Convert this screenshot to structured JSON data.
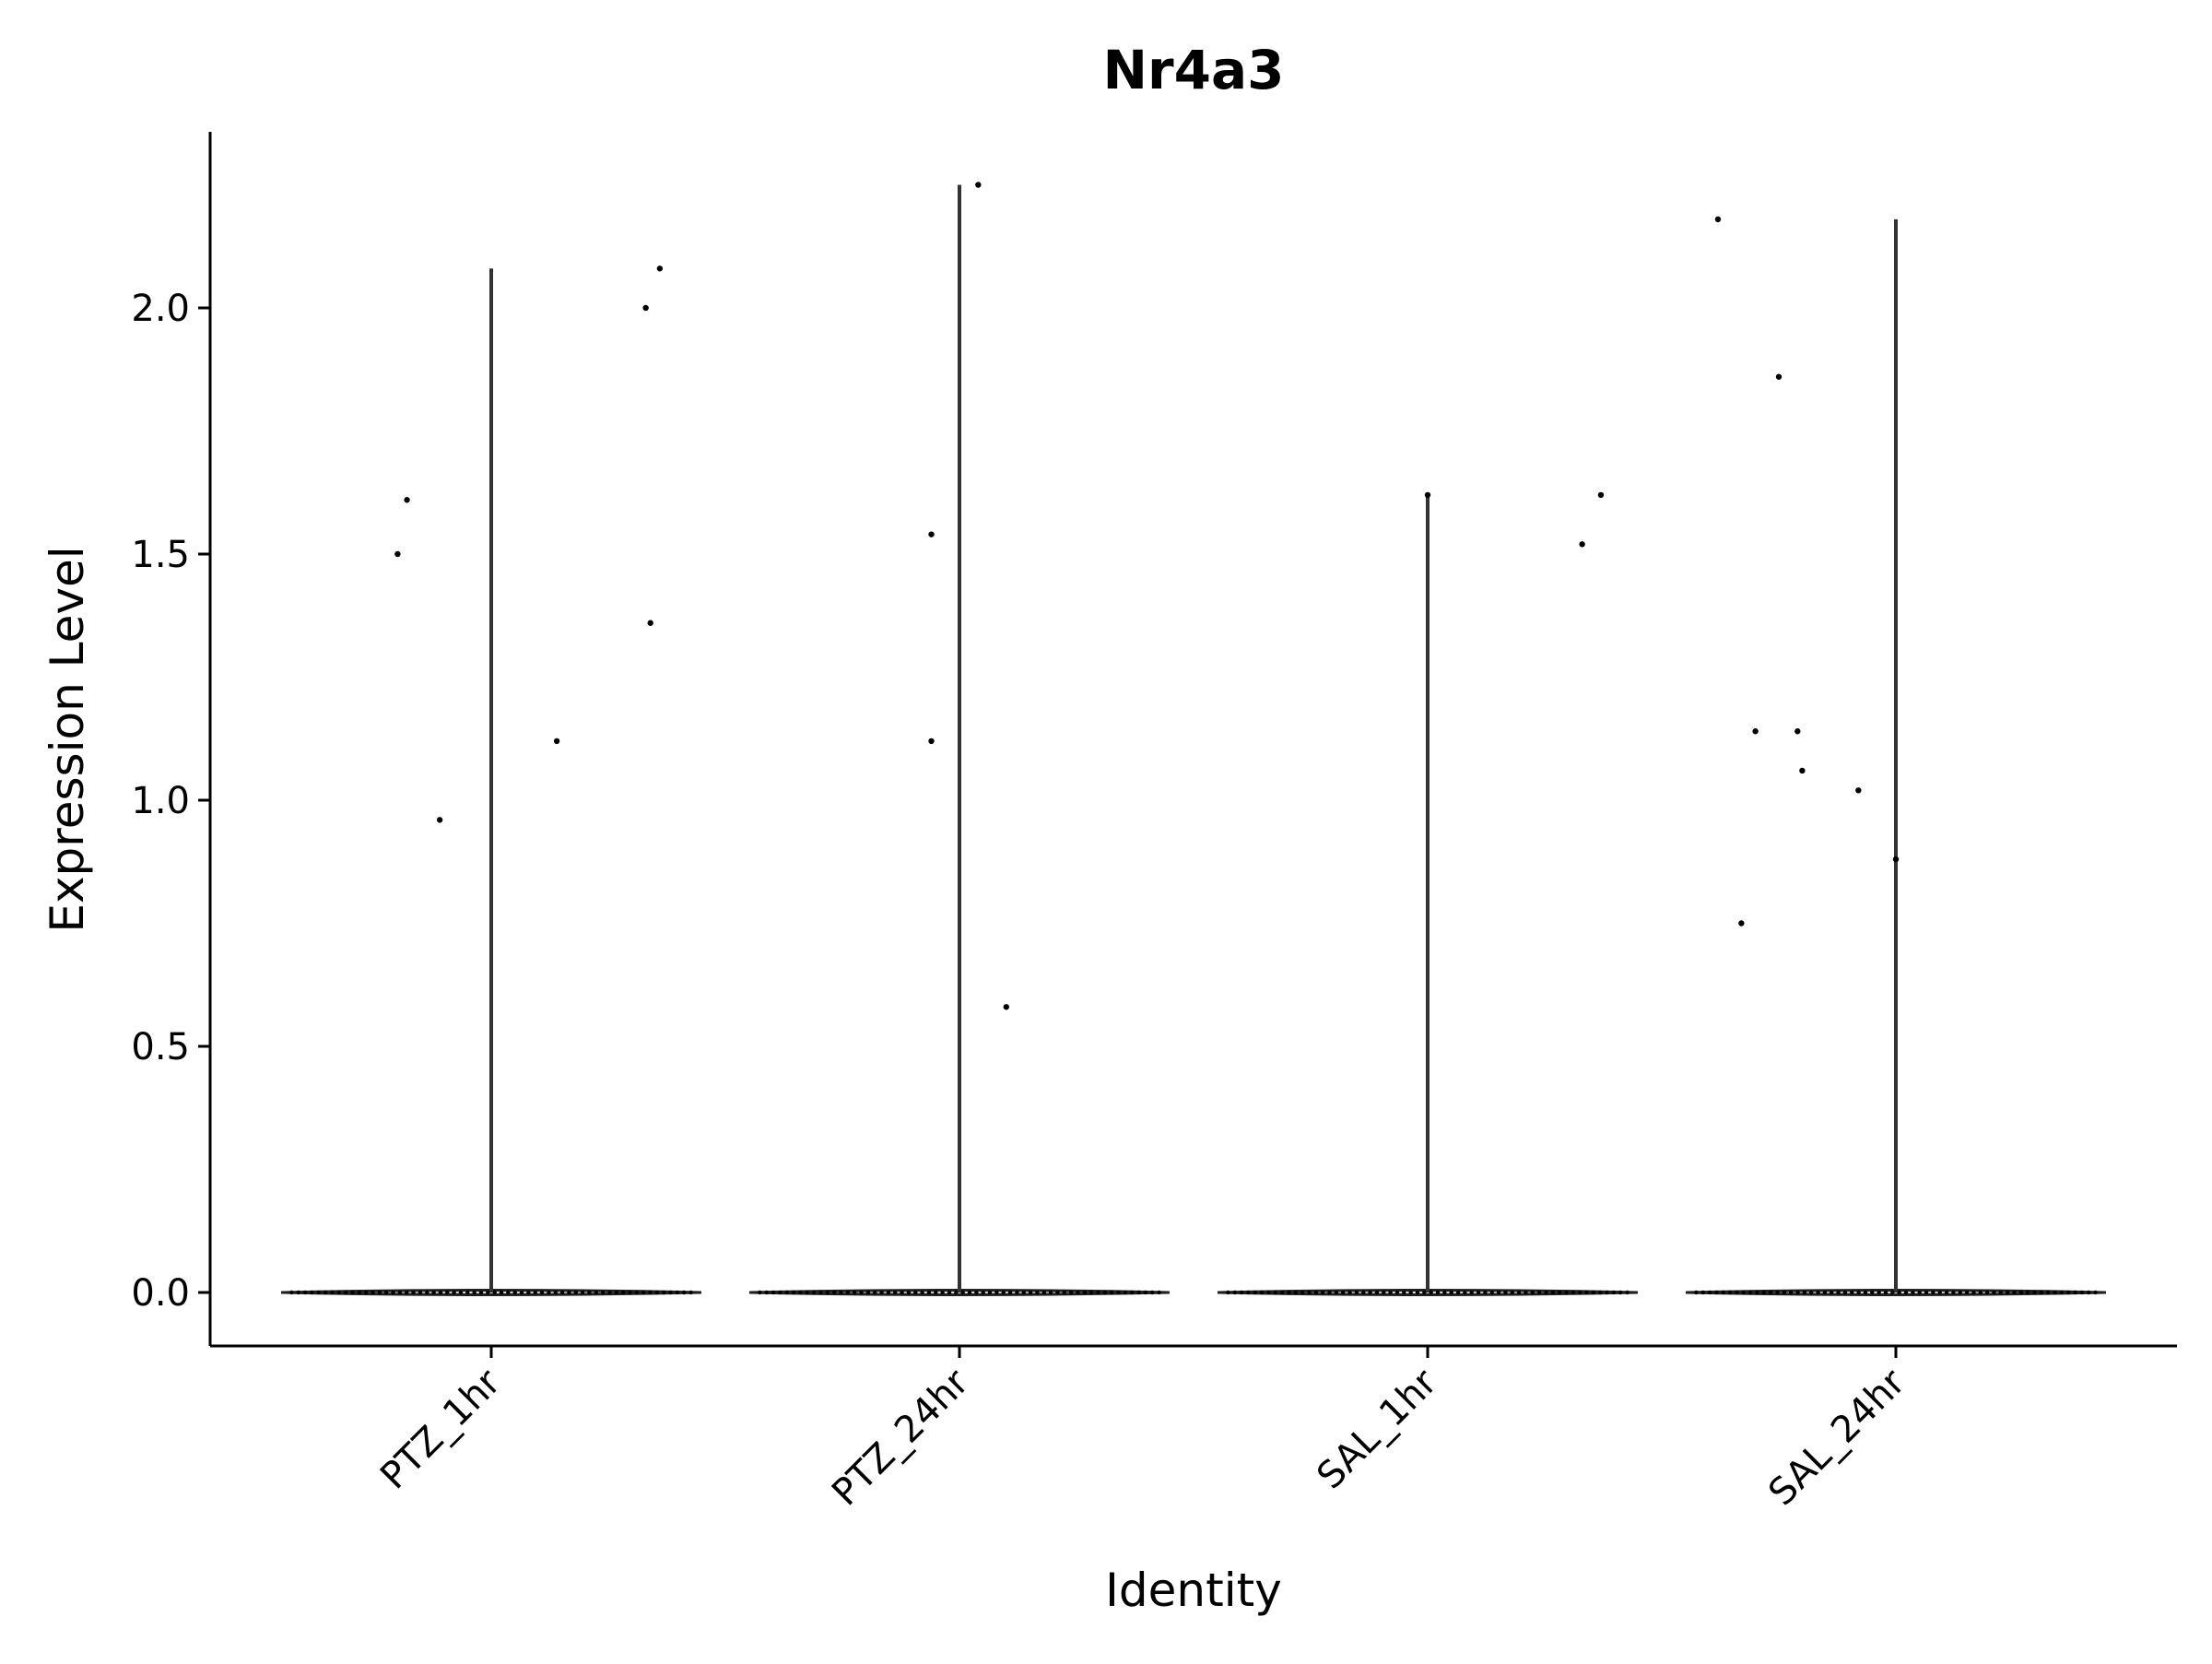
{
  "chart_data": {
    "type": "violin",
    "title": "Nr4a3",
    "xlabel": "Identity",
    "ylabel": "Expression Level",
    "ylim": [
      -0.11,
      2.36
    ],
    "y_ticks": [
      0.0,
      0.5,
      1.0,
      1.5,
      2.0
    ],
    "y_tick_labels": [
      "0.0",
      "0.5",
      "1.0",
      "1.5",
      "2.0"
    ],
    "grid": false,
    "legend": "none",
    "categories": [
      "PTZ_1hr",
      "PTZ_24hr",
      "SAL_1hr",
      "SAL_24hr"
    ],
    "series": [
      {
        "category": "PTZ_1hr",
        "max": 2.08,
        "points": [
          {
            "jitter": -0.2,
            "y": 1.5
          },
          {
            "jitter": -0.18,
            "y": 1.61
          },
          {
            "jitter": -0.11,
            "y": 0.96
          },
          {
            "jitter": 0.14,
            "y": 1.12
          },
          {
            "jitter": 0.33,
            "y": 2.0
          },
          {
            "jitter": 0.34,
            "y": 1.36
          },
          {
            "jitter": 0.36,
            "y": 2.08
          }
        ]
      },
      {
        "category": "PTZ_24hr",
        "max": 2.25,
        "points": [
          {
            "jitter": -0.06,
            "y": 1.54
          },
          {
            "jitter": -0.06,
            "y": 1.12
          },
          {
            "jitter": 0.04,
            "y": 2.25
          },
          {
            "jitter": 0.1,
            "y": 0.58
          }
        ]
      },
      {
        "category": "SAL_1hr",
        "max": 1.62,
        "points": [
          {
            "jitter": 0.0,
            "y": 1.62
          },
          {
            "jitter": 0.33,
            "y": 1.52
          },
          {
            "jitter": 0.37,
            "y": 1.62
          }
        ]
      },
      {
        "category": "SAL_24hr",
        "max": 2.18,
        "points": [
          {
            "jitter": -0.38,
            "y": 2.18
          },
          {
            "jitter": -0.33,
            "y": 0.75
          },
          {
            "jitter": -0.3,
            "y": 1.14
          },
          {
            "jitter": -0.25,
            "y": 1.86
          },
          {
            "jitter": -0.21,
            "y": 1.14
          },
          {
            "jitter": -0.2,
            "y": 1.06
          },
          {
            "jitter": -0.08,
            "y": 1.02
          },
          {
            "jitter": 0.0,
            "y": 0.88
          }
        ]
      }
    ]
  }
}
